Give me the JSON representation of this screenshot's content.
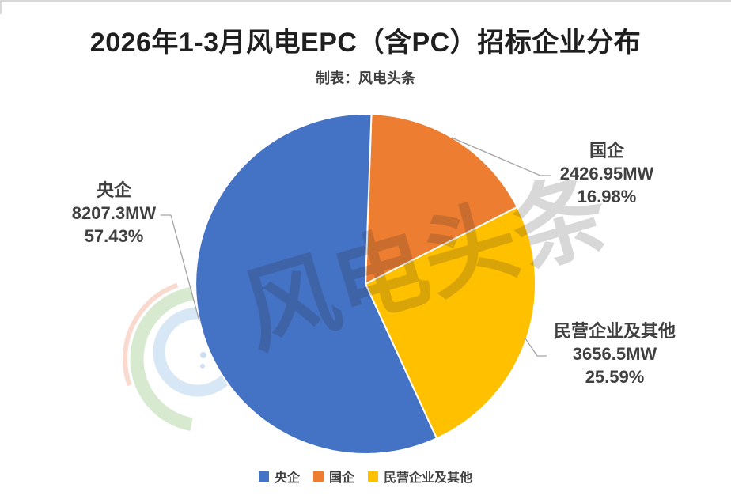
{
  "page": {
    "title": "2026年1-3月风电EPC（含PC）招标企业分布",
    "subtitle": "制表：风电头条"
  },
  "watermark": {
    "text": "风电头条"
  },
  "chart_data": {
    "type": "pie",
    "title": "2026年1-3月风电EPC（含PC）招标企业分布",
    "source_note": "制表：风电头条",
    "categories": [
      "央企",
      "国企",
      "民营企业及其他"
    ],
    "values": [
      8207.3,
      2426.95,
      3656.5
    ],
    "unit": "MW",
    "percents": [
      57.43,
      16.98,
      25.59
    ],
    "colors": [
      "#4472C4",
      "#ED7D31",
      "#FFC000"
    ],
    "draw_order_clockwise_from_top": [
      "国企",
      "民营企业及其他",
      "央企"
    ],
    "start_angle_deg": 2,
    "legend_position": "bottom",
    "grid": false
  },
  "labels": {
    "central": {
      "name": "央企",
      "mw": "8207.3MW",
      "pct": "57.43%"
    },
    "state": {
      "name": "国企",
      "mw": "2426.95MW",
      "pct": "16.98%"
    },
    "private": {
      "name": "民营企业及其他",
      "mw": "3656.5MW",
      "pct": "25.59%"
    }
  },
  "legend": {
    "items": [
      {
        "label": "央企",
        "color": "#4472C4"
      },
      {
        "label": "国企",
        "color": "#ED7D31"
      },
      {
        "label": "民营企业及其他",
        "color": "#FFC000"
      }
    ]
  }
}
